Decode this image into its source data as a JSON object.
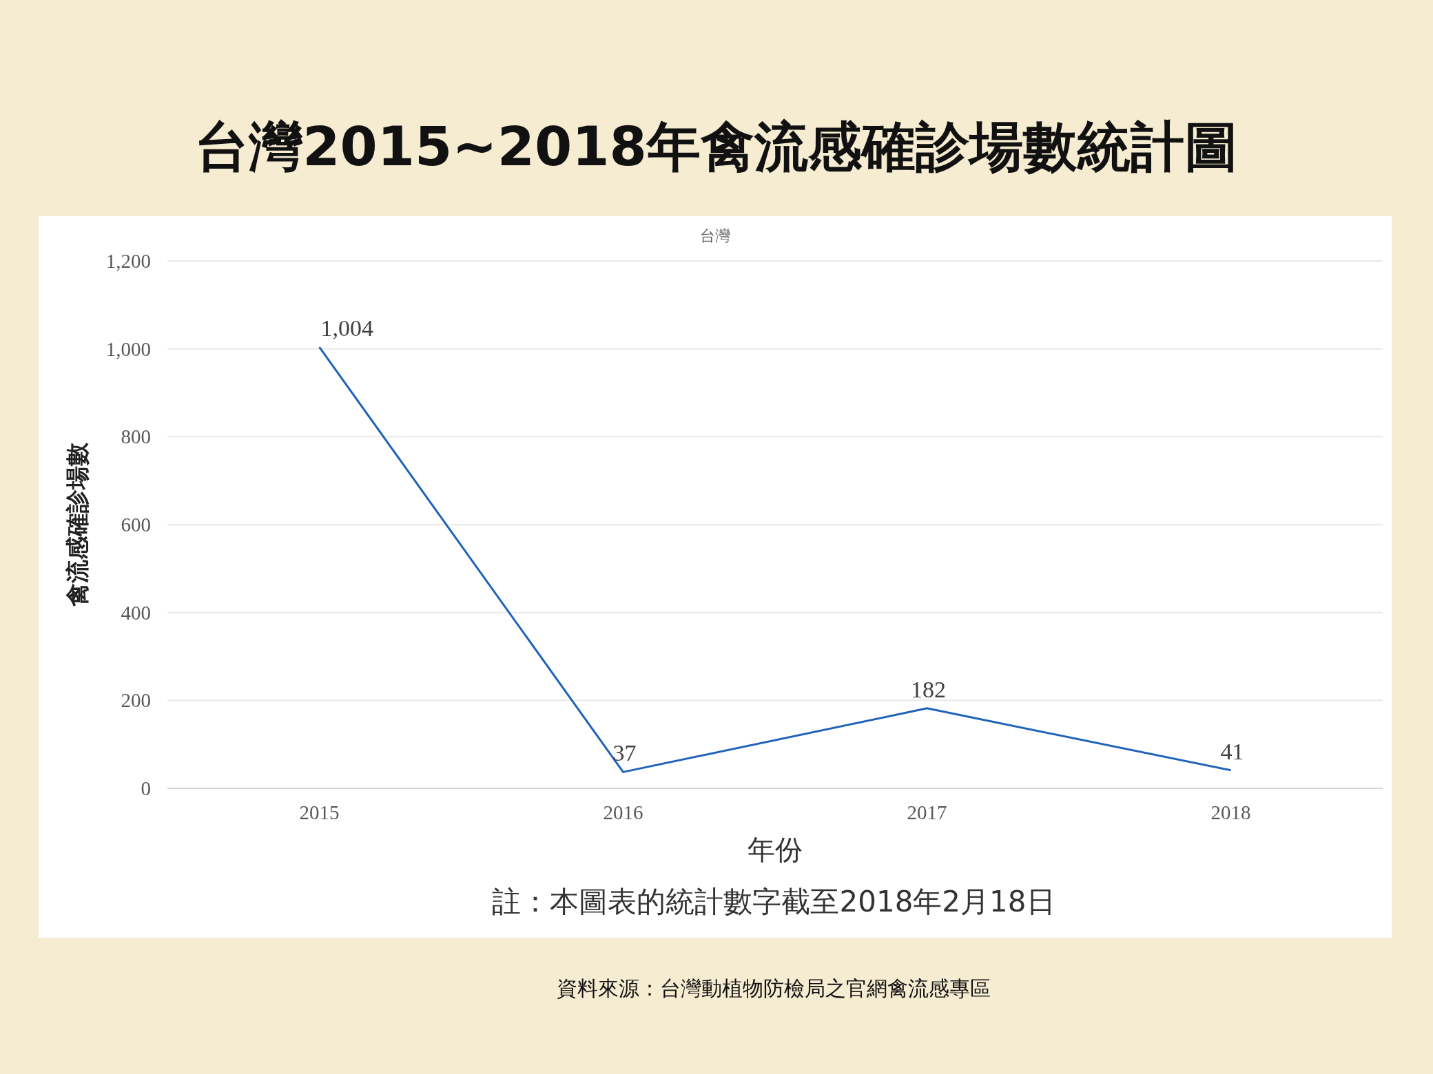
{
  "chart_data": {
    "type": "line",
    "title": "台灣2015~2018年禽流感確診場數統計圖",
    "subtitle": "台灣",
    "xlabel": "年份",
    "ylabel": "禽流感確診場數",
    "categories": [
      "2015",
      "2016",
      "2017",
      "2018"
    ],
    "series": [
      {
        "color": "#1f63b8",
        "values": [
          1004,
          37,
          182,
          41
        ],
        "value_labels": [
          "1,004",
          "37",
          "182",
          "41"
        ]
      }
    ],
    "ylim": [
      0,
      1200
    ],
    "yticks": [
      0,
      200,
      400,
      600,
      800,
      {
        "value": 1000,
        "label": "1,000"
      },
      {
        "value": 1200,
        "label": "1,200"
      }
    ],
    "grid": "y",
    "marker": "none",
    "line_style": "solid",
    "annotations": [
      "註：本圖表的統計數字截至2018年2月18日",
      "資料來源：台灣動植物防檢局之官網禽流感專區"
    ]
  }
}
